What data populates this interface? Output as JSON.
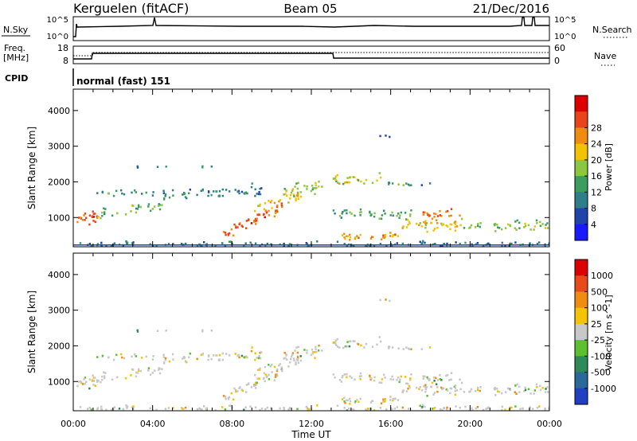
{
  "header": {
    "station": "Kerguelen (fitACF)",
    "beam": "Beam 05",
    "date": "21/Dec/2016"
  },
  "top_panels": {
    "nsky_label": "N.Sky",
    "nsky_ticks": [
      "10^5",
      "10^0"
    ],
    "nsearch_label": "N.Search",
    "nsearch_ticks": [
      "10^5",
      "10^0"
    ],
    "freq_label_1": "Freq.",
    "freq_label_2": "[MHz]",
    "freq_ticks": [
      "18",
      "8"
    ],
    "nave_label": "Nave",
    "nave_ticks": [
      "60",
      "0"
    ],
    "cpid_label": "CPID",
    "cpid_value": "normal (fast) 151"
  },
  "chart_data": [
    {
      "type": "heatmap",
      "title": "",
      "quantity": "Power",
      "ylabel": "Slant Range [km]",
      "xlabel": "",
      "yticks": [
        "1000",
        "2000",
        "3000",
        "4000"
      ],
      "ylim": [
        180,
        4600
      ],
      "xlim": [
        0,
        24
      ],
      "colorbar_label": "Power [dB]",
      "colorbar_ticks": [
        "4",
        "8",
        "12",
        "16",
        "20",
        "24",
        "28"
      ],
      "colorbar_colors": [
        "#1a1aff",
        "#2244aa",
        "#2f7f8a",
        "#3b9e5e",
        "#8dc63f",
        "#f2c200",
        "#f08c10",
        "#e8461a",
        "#dd0000"
      ]
    },
    {
      "type": "heatmap",
      "title": "",
      "quantity": "Velocity",
      "ylabel": "Slant Range [km]",
      "xlabel": "Time UT",
      "yticks": [
        "1000",
        "2000",
        "3000",
        "4000"
      ],
      "xticks": [
        "00:00",
        "04:00",
        "08:00",
        "12:00",
        "16:00",
        "20:00",
        "00:00"
      ],
      "ylim": [
        180,
        4600
      ],
      "xlim": [
        0,
        24
      ],
      "colorbar_label": "Velocity [m s^-1]",
      "colorbar_ticks": [
        "1000",
        "500",
        "100",
        "25",
        "-25",
        "-100",
        "-500",
        "-1000"
      ],
      "colorbar_colors": [
        "#2040c0",
        "#2a6a9a",
        "#2f8a5a",
        "#5cc030",
        "#c8c8c8",
        "#f5c400",
        "#f08c10",
        "#e84a1a",
        "#dd0000"
      ]
    }
  ]
}
